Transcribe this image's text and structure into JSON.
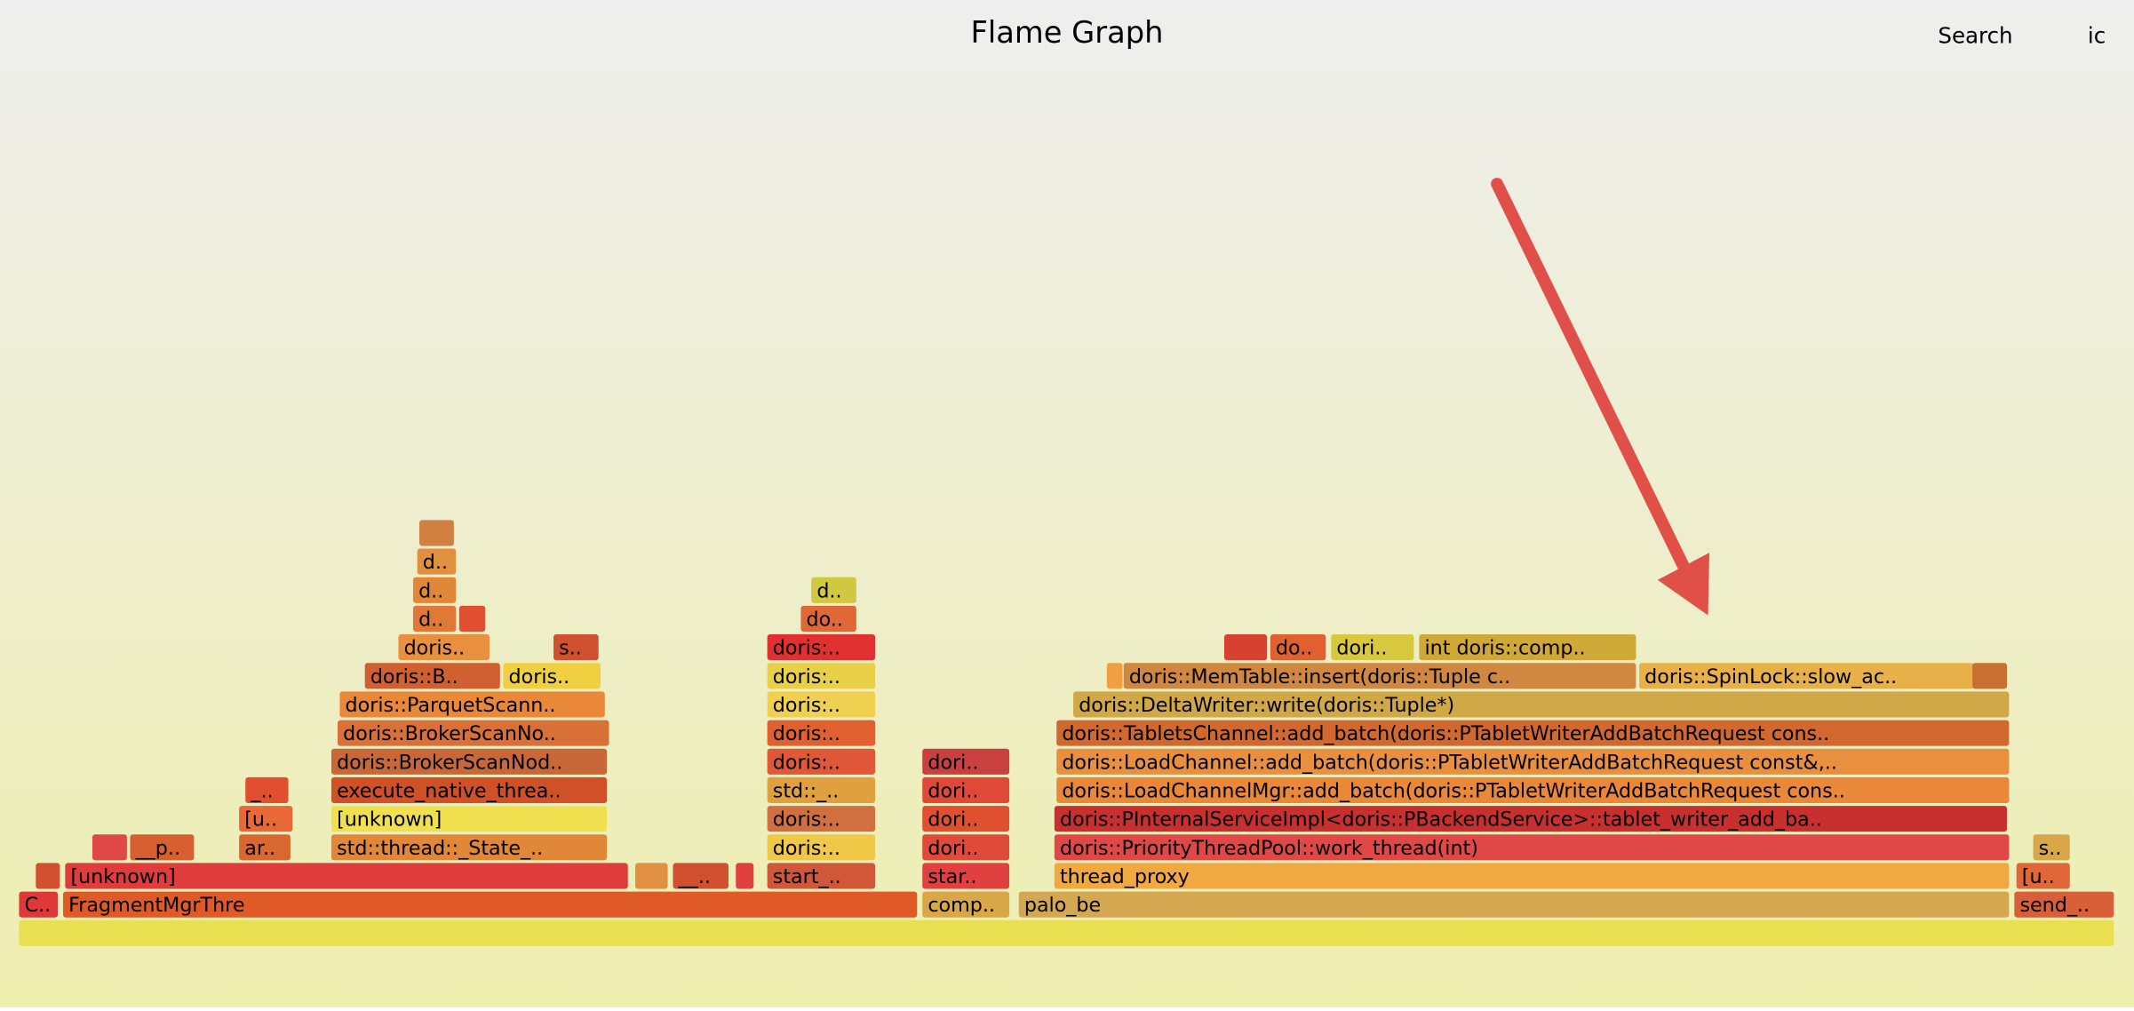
{
  "chart_data": {
    "type": "flamegraph",
    "title": "Flame Graph",
    "controls": [
      "Search",
      "ic"
    ],
    "frames": [
      {
        "name": null,
        "depth": 0,
        "start": 0,
        "width": 100,
        "color": "#e8e050"
      },
      {
        "name": "C..",
        "depth": 1,
        "start": 0,
        "width": 1.9,
        "color": "#e03838"
      },
      {
        "name": "FragmentMgrThre",
        "depth": 1,
        "start": 2.1,
        "width": 40.8,
        "color": "#e05a28"
      },
      {
        "name": "comp..",
        "depth": 1,
        "start": 43.1,
        "width": 4.2,
        "color": "#d8a848"
      },
      {
        "name": "palo_be",
        "depth": 1,
        "start": 47.7,
        "width": 47.3,
        "color": "#d4a850"
      },
      {
        "name": "send_..",
        "depth": 1,
        "start": 95.2,
        "width": 4.8,
        "color": "#d86038"
      },
      {
        "name": null,
        "depth": 2,
        "start": 0.8,
        "width": 1.2,
        "color": "#d05030"
      },
      {
        "name": "[unknown]",
        "depth": 2,
        "start": 2.2,
        "width": 26.9,
        "color": "#e03c3c"
      },
      {
        "name": null,
        "depth": 2,
        "start": 29.4,
        "width": 1.6,
        "color": "#e09040"
      },
      {
        "name": "__..",
        "depth": 2,
        "start": 31.2,
        "width": 2.7,
        "color": "#d05030"
      },
      {
        "name": null,
        "depth": 2,
        "start": 34.2,
        "width": 0.9,
        "color": "#e04040"
      },
      {
        "name": "start_..",
        "depth": 2,
        "start": 35.7,
        "width": 5.2,
        "color": "#d05838"
      },
      {
        "name": "star..",
        "depth": 2,
        "start": 43.1,
        "width": 4.2,
        "color": "#e04040"
      },
      {
        "name": "thread_proxy",
        "depth": 2,
        "start": 49.4,
        "width": 45.6,
        "color": "#f0a840"
      },
      {
        "name": "[u..",
        "depth": 2,
        "start": 95.3,
        "width": 2.6,
        "color": "#e06838"
      },
      {
        "name": null,
        "depth": 3,
        "start": 3.5,
        "width": 1.7,
        "color": "#e04848"
      },
      {
        "name": "__p..",
        "depth": 3,
        "start": 5.3,
        "width": 3.1,
        "color": "#d86030"
      },
      {
        "name": "ar..",
        "depth": 3,
        "start": 10.5,
        "width": 2.5,
        "color": "#d86830"
      },
      {
        "name": "std::thread::_State_..",
        "depth": 3,
        "start": 14.9,
        "width": 13.2,
        "color": "#e08838"
      },
      {
        "name": "doris:..",
        "depth": 3,
        "start": 35.7,
        "width": 5.2,
        "color": "#f0c848"
      },
      {
        "name": "dori..",
        "depth": 3,
        "start": 43.1,
        "width": 4.2,
        "color": "#e04a38"
      },
      {
        "name": "doris::PriorityThreadPool::work_thread(int)",
        "depth": 3,
        "start": 49.4,
        "width": 45.6,
        "color": "#e04848"
      },
      {
        "name": "s..",
        "depth": 3,
        "start": 96.1,
        "width": 1.8,
        "color": "#d8a848"
      },
      {
        "name": "[u..",
        "depth": 4,
        "start": 10.5,
        "width": 2.6,
        "color": "#e86838"
      },
      {
        "name": "[unknown]",
        "depth": 4,
        "start": 14.9,
        "width": 13.2,
        "color": "#f0e050"
      },
      {
        "name": "doris:..",
        "depth": 4,
        "start": 35.7,
        "width": 5.2,
        "color": "#d07040"
      },
      {
        "name": "dori..",
        "depth": 4,
        "start": 43.1,
        "width": 4.2,
        "color": "#e05030"
      },
      {
        "name": "doris::PInternalServiceImpl<doris::PBackendService>::tablet_writer_add_ba..",
        "depth": 4,
        "start": 49.4,
        "width": 45.5,
        "color": "#c83030"
      },
      {
        "name": "_..",
        "depth": 5,
        "start": 10.8,
        "width": 2.1,
        "color": "#e05030"
      },
      {
        "name": "execute_native_threa..",
        "depth": 5,
        "start": 14.9,
        "width": 13.2,
        "color": "#d05028"
      },
      {
        "name": "std::_..",
        "depth": 5,
        "start": 35.7,
        "width": 5.2,
        "color": "#e0a040"
      },
      {
        "name": "dori..",
        "depth": 5,
        "start": 43.1,
        "width": 4.2,
        "color": "#e04838"
      },
      {
        "name": "doris::LoadChannelMgr::add_batch(doris::PTabletWriterAddBatchRequest cons..",
        "depth": 5,
        "start": 49.5,
        "width": 45.5,
        "color": "#e88838"
      },
      {
        "name": "doris::BrokerScanNod..",
        "depth": 6,
        "start": 14.9,
        "width": 13.2,
        "color": "#c86838"
      },
      {
        "name": "doris:..",
        "depth": 6,
        "start": 35.7,
        "width": 5.2,
        "color": "#e05838"
      },
      {
        "name": "dori..",
        "depth": 6,
        "start": 43.1,
        "width": 4.2,
        "color": "#c84040"
      },
      {
        "name": "doris::LoadChannel::add_batch(doris::PTabletWriterAddBatchRequest const&,..",
        "depth": 6,
        "start": 49.5,
        "width": 45.5,
        "color": "#e89040"
      },
      {
        "name": "doris::BrokerScanNo..",
        "depth": 7,
        "start": 15.2,
        "width": 13.0,
        "color": "#d87038"
      },
      {
        "name": "doris:..",
        "depth": 7,
        "start": 35.7,
        "width": 5.2,
        "color": "#e06030"
      },
      {
        "name": "doris::TabletsChannel::add_batch(doris::PTabletWriterAddBatchRequest cons..",
        "depth": 7,
        "start": 49.5,
        "width": 45.5,
        "color": "#d06830"
      },
      {
        "name": "doris::ParquetScann..",
        "depth": 8,
        "start": 15.3,
        "width": 12.7,
        "color": "#e88838"
      },
      {
        "name": "doris:..",
        "depth": 8,
        "start": 35.7,
        "width": 5.2,
        "color": "#f0d050"
      },
      {
        "name": "doris::DeltaWriter::write(doris::Tuple*)",
        "depth": 8,
        "start": 50.3,
        "width": 44.7,
        "color": "#d0a848"
      },
      {
        "name": "doris::B..",
        "depth": 9,
        "start": 16.5,
        "width": 6.5,
        "color": "#d06030"
      },
      {
        "name": "doris..",
        "depth": 9,
        "start": 23.1,
        "width": 4.7,
        "color": "#f0d040"
      },
      {
        "name": "doris:..",
        "depth": 9,
        "start": 35.7,
        "width": 5.2,
        "color": "#e8d048"
      },
      {
        "name": null,
        "depth": 9,
        "start": 51.9,
        "width": 0.8,
        "color": "#f0a040"
      },
      {
        "name": "doris::MemTable::insert(doris::Tuple c..",
        "depth": 9,
        "start": 52.7,
        "width": 24.5,
        "color": "#d08840"
      },
      {
        "name": "doris::SpinLock::slow_ac..",
        "depth": 9,
        "start": 77.3,
        "width": 16.0,
        "color": "#e8b048"
      },
      {
        "name": null,
        "depth": 9,
        "start": 93.2,
        "width": 1.7,
        "color": "#c87030"
      },
      {
        "name": "doris..",
        "depth": 10,
        "start": 18.1,
        "width": 4.4,
        "color": "#e89040"
      },
      {
        "name": "s..",
        "depth": 10,
        "start": 25.5,
        "width": 2.2,
        "color": "#d05030"
      },
      {
        "name": "doris:..",
        "depth": 10,
        "start": 35.7,
        "width": 5.2,
        "color": "#e03030"
      },
      {
        "name": null,
        "depth": 10,
        "start": 57.5,
        "width": 2.1,
        "color": "#d84030"
      },
      {
        "name": "do..",
        "depth": 10,
        "start": 59.7,
        "width": 2.7,
        "color": "#e06030"
      },
      {
        "name": "dori..",
        "depth": 10,
        "start": 62.6,
        "width": 4.0,
        "color": "#d8c840"
      },
      {
        "name": "int doris::comp..",
        "depth": 10,
        "start": 66.8,
        "width": 10.4,
        "color": "#d0a838"
      },
      {
        "name": "d..",
        "depth": 11,
        "start": 18.8,
        "width": 2.1,
        "color": "#e07838"
      },
      {
        "name": null,
        "depth": 11,
        "start": 21.0,
        "width": 1.3,
        "color": "#e05030"
      },
      {
        "name": "do..",
        "depth": 11,
        "start": 37.3,
        "width": 2.7,
        "color": "#e06838"
      },
      {
        "name": "d..",
        "depth": 12,
        "start": 18.8,
        "width": 2.1,
        "color": "#e08838"
      },
      {
        "name": "d..",
        "depth": 12,
        "start": 37.8,
        "width": 2.2,
        "color": "#d0c840"
      },
      {
        "name": "d..",
        "depth": 13,
        "start": 19.0,
        "width": 1.9,
        "color": "#e09040"
      },
      {
        "name": null,
        "depth": 14,
        "start": 19.1,
        "width": 1.7,
        "color": "#d08040"
      }
    ]
  }
}
